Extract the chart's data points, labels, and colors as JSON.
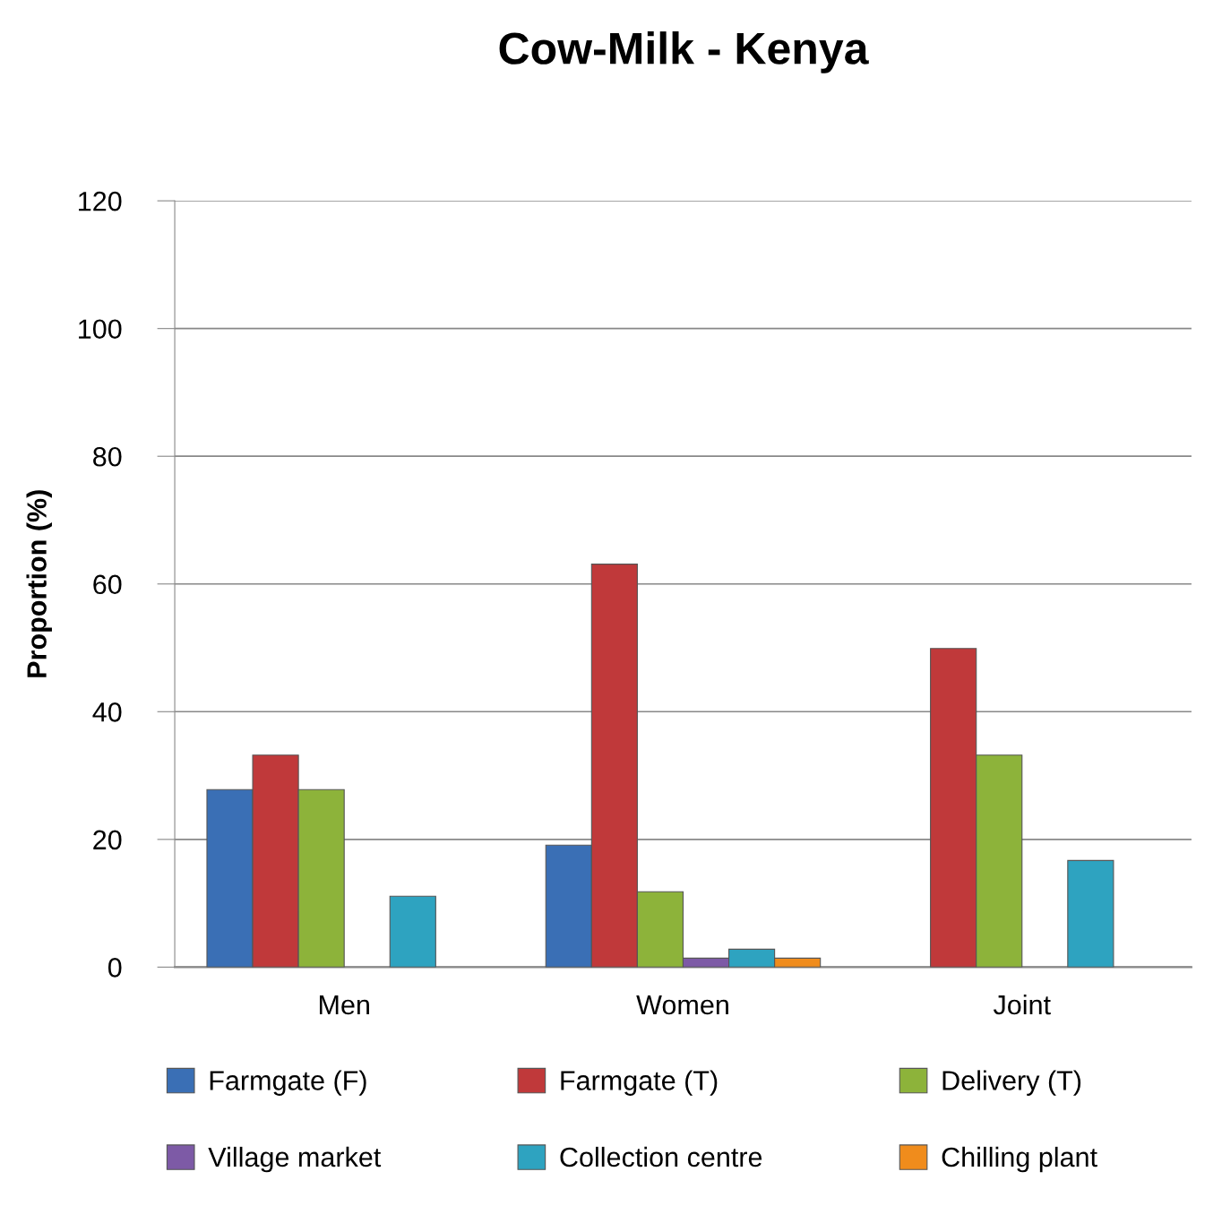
{
  "chart_data": {
    "type": "bar",
    "title": "Cow-Milk - Kenya",
    "ylabel": "Proportion (%)",
    "categories": [
      "Men",
      "Women",
      "Joint"
    ],
    "series": [
      {
        "name": "Farmgate (F)",
        "color": "#3a6fb5",
        "values": [
          27.8,
          19.1,
          null
        ]
      },
      {
        "name": "Farmgate (T)",
        "color": "#c0393a",
        "values": [
          33.2,
          63.1,
          49.9
        ]
      },
      {
        "name": "Delivery (T)",
        "color": "#8db33a",
        "values": [
          27.8,
          11.8,
          33.2
        ]
      },
      {
        "name": "Village market",
        "color": "#7d5aa6",
        "values": [
          null,
          1.4,
          null
        ]
      },
      {
        "name": "Collection centre",
        "color": "#2ea3c0",
        "values": [
          11.1,
          2.8,
          16.7
        ]
      },
      {
        "name": "Chilling plant",
        "color": "#f08c1c",
        "values": [
          null,
          1.4,
          null
        ]
      }
    ],
    "ylim": [
      0,
      120
    ],
    "yticks": [
      0,
      20,
      40,
      60,
      80,
      100,
      120
    ],
    "grid": "y",
    "legend": "bottom"
  }
}
